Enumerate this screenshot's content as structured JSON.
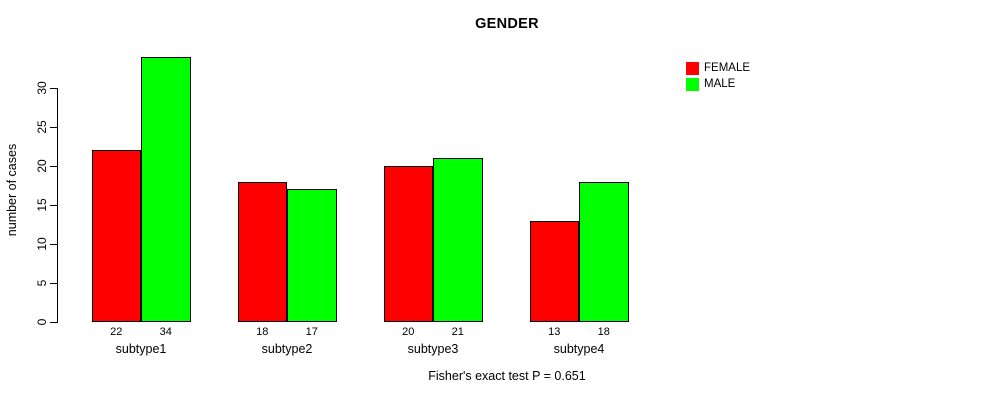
{
  "chart_data": {
    "type": "bar",
    "title": "GENDER",
    "ylabel": "number of cases",
    "xlabel": "",
    "categories": [
      "subtype1",
      "subtype2",
      "subtype3",
      "subtype4"
    ],
    "series": [
      {
        "name": "FEMALE",
        "color": "#ff0000",
        "values": [
          22,
          18,
          20,
          13
        ]
      },
      {
        "name": "MALE",
        "color": "#00ff00",
        "values": [
          34,
          17,
          21,
          18
        ]
      }
    ],
    "bar_value_labels": [
      [
        22,
        34
      ],
      [
        18,
        17
      ],
      [
        20,
        21
      ],
      [
        13,
        18
      ]
    ],
    "yticks": [
      0,
      5,
      10,
      15,
      20,
      25,
      30
    ],
    "ylim": [
      0,
      34
    ],
    "grid": false,
    "legend_position": "top-right",
    "bar_border_color": "#000000",
    "footnote": "Fisher's exact test P = 0.651"
  }
}
